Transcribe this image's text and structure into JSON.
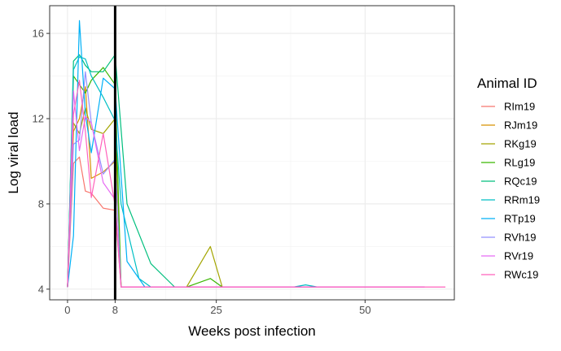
{
  "chart_data": {
    "type": "line",
    "title": "",
    "xlabel": "Weeks post infection",
    "ylabel": "Log viral load",
    "xlim": [
      -3,
      65
    ],
    "ylim": [
      3.5,
      17.3
    ],
    "x_ticks": [
      0,
      8,
      25,
      50
    ],
    "y_ticks": [
      4,
      8,
      12,
      16
    ],
    "grid": true,
    "reference_line": {
      "x": 8,
      "color": "#000000"
    },
    "legend": {
      "title": "Animal ID",
      "placement": "right"
    },
    "series": [
      {
        "name": "RIm19",
        "color": "#F8766D",
        "points": [
          [
            0,
            4.1
          ],
          [
            1,
            9.9
          ],
          [
            2,
            10.2
          ],
          [
            3,
            8.6
          ],
          [
            4,
            8.5
          ],
          [
            6,
            7.8
          ],
          [
            8,
            7.7
          ],
          [
            9,
            4.1
          ],
          [
            60,
            4.1
          ]
        ]
      },
      {
        "name": "RJm19",
        "color": "#D89000",
        "points": [
          [
            0,
            4.1
          ],
          [
            1,
            11.4
          ],
          [
            2,
            12.0
          ],
          [
            3,
            13.5
          ],
          [
            4,
            9.2
          ],
          [
            6,
            9.5
          ],
          [
            8,
            10.0
          ],
          [
            9,
            4.1
          ],
          [
            60,
            4.1
          ]
        ]
      },
      {
        "name": "RKg19",
        "color": "#A3A500",
        "points": [
          [
            0,
            4.1
          ],
          [
            1,
            11.8
          ],
          [
            2,
            11.3
          ],
          [
            3,
            12.5
          ],
          [
            4,
            11.5
          ],
          [
            6,
            11.3
          ],
          [
            8,
            12.0
          ],
          [
            9,
            4.1
          ],
          [
            20,
            4.1
          ],
          [
            24,
            6.0
          ],
          [
            26,
            4.1
          ],
          [
            60,
            4.1
          ]
        ]
      },
      {
        "name": "RLg19",
        "color": "#39B600",
        "points": [
          [
            0,
            4.1
          ],
          [
            1,
            14.0
          ],
          [
            2,
            13.6
          ],
          [
            3,
            13.2
          ],
          [
            4,
            13.8
          ],
          [
            6,
            14.4
          ],
          [
            8,
            13.6
          ],
          [
            9,
            4.1
          ],
          [
            20,
            4.1
          ],
          [
            24,
            4.5
          ],
          [
            26,
            4.1
          ],
          [
            60,
            4.1
          ]
        ]
      },
      {
        "name": "RQc19",
        "color": "#00BF7D",
        "points": [
          [
            0,
            4.1
          ],
          [
            1,
            14.7
          ],
          [
            2,
            15.0
          ],
          [
            3,
            14.5
          ],
          [
            4,
            14.2
          ],
          [
            6,
            14.2
          ],
          [
            8,
            15.0
          ],
          [
            10,
            8.0
          ],
          [
            14,
            5.2
          ],
          [
            18,
            4.1
          ],
          [
            60,
            4.1
          ]
        ]
      },
      {
        "name": "RRm19",
        "color": "#00BFC4",
        "points": [
          [
            0,
            4.1
          ],
          [
            1,
            14.3
          ],
          [
            2,
            14.9
          ],
          [
            3,
            14.8
          ],
          [
            4,
            14.0
          ],
          [
            6,
            13.0
          ],
          [
            8,
            11.9
          ],
          [
            9,
            8.0
          ],
          [
            12,
            4.5
          ],
          [
            14,
            4.1
          ],
          [
            38,
            4.1
          ],
          [
            40,
            4.2
          ],
          [
            42,
            4.1
          ],
          [
            60,
            4.1
          ]
        ]
      },
      {
        "name": "RTp19",
        "color": "#00B0F6",
        "points": [
          [
            0,
            4.1
          ],
          [
            1,
            6.5
          ],
          [
            2,
            16.6
          ],
          [
            3,
            12.2
          ],
          [
            4,
            10.4
          ],
          [
            6,
            13.9
          ],
          [
            8,
            13.4
          ],
          [
            10,
            5.3
          ],
          [
            13,
            4.1
          ],
          [
            60,
            4.1
          ]
        ]
      },
      {
        "name": "RVh19",
        "color": "#9590FF",
        "points": [
          [
            0,
            4.1
          ],
          [
            1,
            10.8
          ],
          [
            2,
            11.0
          ],
          [
            3,
            14.2
          ],
          [
            4,
            11.8
          ],
          [
            6,
            9.4
          ],
          [
            8,
            10.1
          ],
          [
            9,
            4.1
          ],
          [
            60,
            4.1
          ]
        ]
      },
      {
        "name": "RVr19",
        "color": "#E76BF3",
        "points": [
          [
            0,
            4.1
          ],
          [
            1,
            13.3
          ],
          [
            2,
            10.5
          ],
          [
            3,
            12.1
          ],
          [
            4,
            11.8
          ],
          [
            6,
            9.0
          ],
          [
            8,
            8.2
          ],
          [
            9,
            4.1
          ],
          [
            60,
            4.1
          ]
        ]
      },
      {
        "name": "RWc19",
        "color": "#FF62BC",
        "points": [
          [
            0,
            4.1
          ],
          [
            1,
            12.2
          ],
          [
            2,
            13.8
          ],
          [
            3,
            11.4
          ],
          [
            4,
            8.3
          ],
          [
            6,
            11.3
          ],
          [
            8,
            7.9
          ],
          [
            9,
            4.1
          ],
          [
            56,
            4.1
          ],
          [
            62,
            4.1
          ],
          [
            63.5,
            4.1
          ]
        ]
      }
    ]
  }
}
